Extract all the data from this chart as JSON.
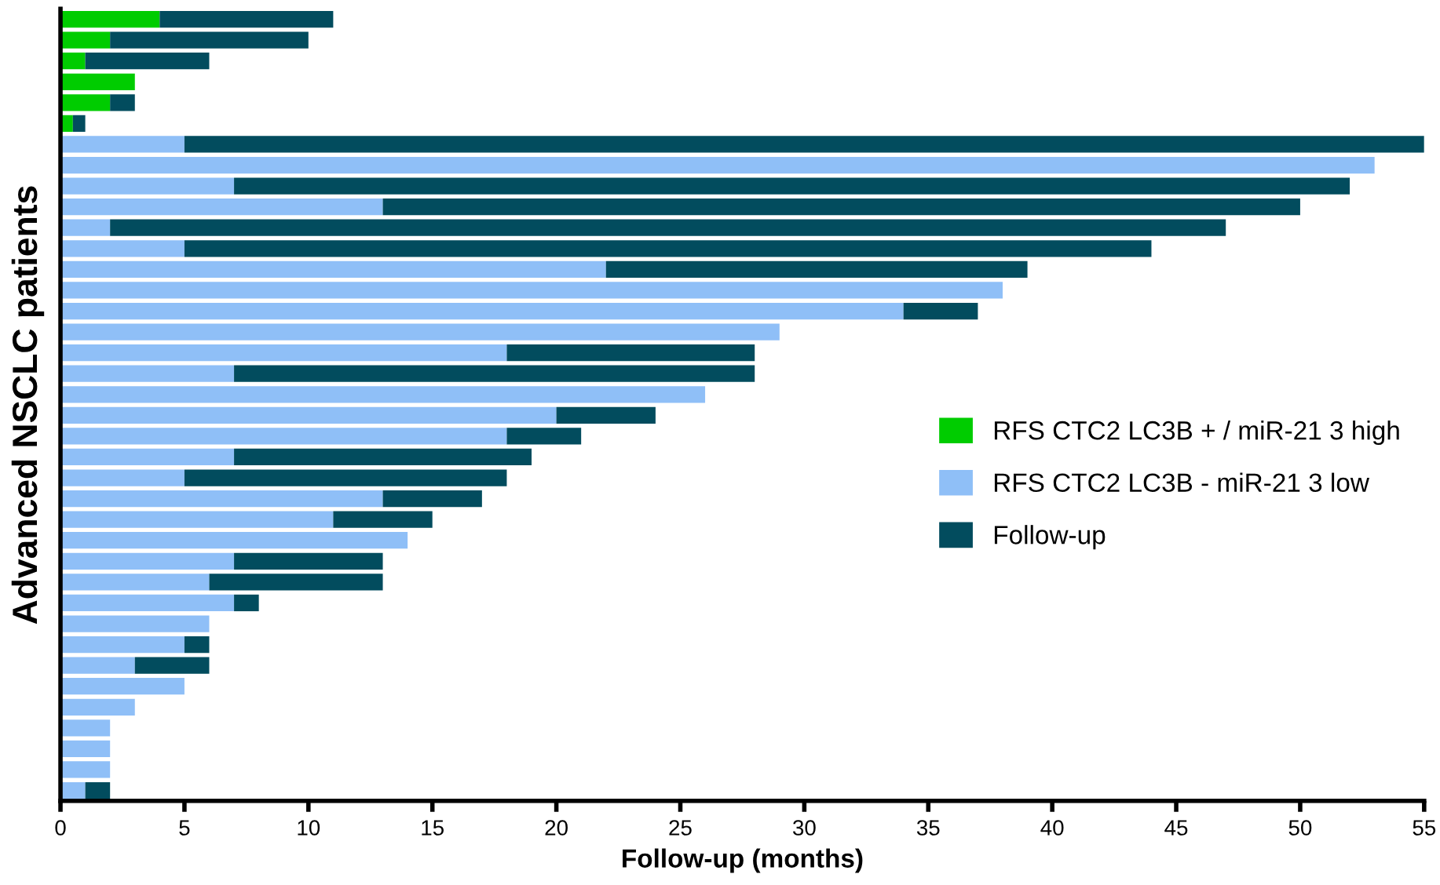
{
  "chart_data": {
    "type": "bar",
    "orientation": "horizontal",
    "stacked": true,
    "xlabel": "Follow-up (months)",
    "ylabel": "Advanced NSCLC patients",
    "categories": [
      null,
      null,
      null,
      null,
      null,
      null,
      null,
      null,
      null,
      null,
      null,
      null,
      null,
      null,
      null,
      null,
      null,
      null,
      null,
      null,
      null,
      null,
      null,
      null,
      null,
      null,
      null,
      null,
      null,
      null,
      null,
      null,
      null,
      null,
      null,
      null,
      null,
      null
    ],
    "series": [
      {
        "name": "RFS CTC2 LC3B + / miR-21 3 high",
        "color": "#00cc00",
        "values": [
          4,
          2,
          1,
          3,
          2,
          0.5,
          null,
          null,
          null,
          null,
          null,
          null,
          null,
          null,
          null,
          null,
          null,
          null,
          null,
          null,
          null,
          null,
          null,
          null,
          null,
          null,
          null,
          null,
          null,
          null,
          null,
          null,
          null,
          null,
          null,
          null,
          null,
          null
        ]
      },
      {
        "name": "RFS CTC2 LC3B - miR-21 3 low",
        "color": "#8fbff7",
        "values": [
          null,
          null,
          null,
          null,
          null,
          null,
          5,
          53,
          7,
          13,
          2,
          5,
          22,
          38,
          34,
          29,
          18,
          7,
          26,
          20,
          18,
          7,
          5,
          13,
          11,
          14,
          7,
          6,
          7,
          6,
          5,
          3,
          5,
          3,
          2,
          2,
          2,
          1
        ]
      },
      {
        "name": "Follow-up",
        "color": "#024c5e",
        "values": [
          7,
          8,
          5,
          null,
          1,
          0.5,
          50,
          null,
          45,
          37,
          45,
          39,
          17,
          null,
          3,
          null,
          10,
          21,
          null,
          4,
          3,
          12,
          13,
          4,
          4,
          null,
          6,
          7,
          1,
          null,
          1,
          3,
          null,
          null,
          null,
          null,
          null,
          1
        ]
      }
    ],
    "xlim": [
      0,
      55
    ],
    "xticks": [
      0,
      5,
      10,
      15,
      20,
      25,
      30,
      35,
      40,
      45,
      50,
      55
    ],
    "grid": false,
    "legend": "right"
  }
}
